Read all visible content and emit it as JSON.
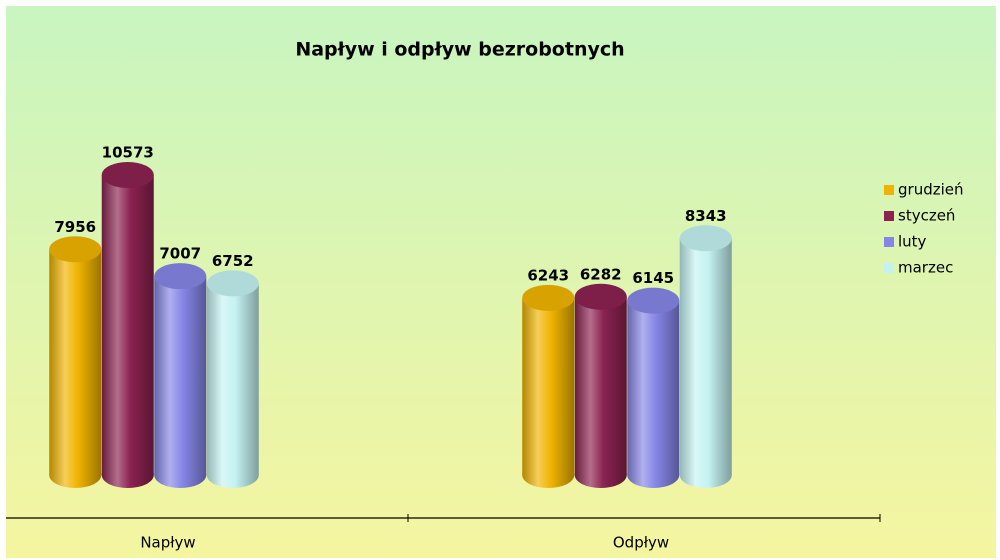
{
  "chart_data": {
    "type": "bar",
    "title": "Napływ i odpływ bezrobotnych",
    "categories": [
      "Napływ",
      "Odpływ"
    ],
    "series": [
      {
        "name": "grudzień",
        "color": "#f0b400",
        "values": [
          7956,
          6243
        ]
      },
      {
        "name": "styczeń",
        "color": "#8b2250",
        "values": [
          10573,
          6282
        ]
      },
      {
        "name": "luty",
        "color": "#8585e6",
        "values": [
          7007,
          6145
        ]
      },
      {
        "name": "marzec",
        "color": "#c4f2f2",
        "values": [
          6752,
          8343
        ]
      }
    ],
    "legend": "right"
  }
}
